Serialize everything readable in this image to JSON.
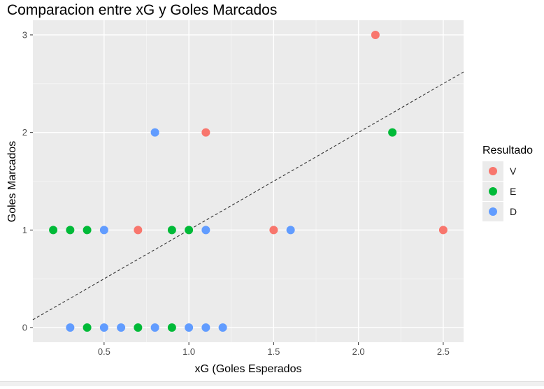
{
  "chart_data": {
    "type": "scatter",
    "title": "Comparacion entre xG y Goles Marcados",
    "xlabel": "xG (Goles Esperados",
    "ylabel": "Goles Marcados",
    "xlim": [
      0.08,
      2.62
    ],
    "ylim": [
      -0.15,
      3.15
    ],
    "x_ticks": [
      0.5,
      1.0,
      1.5,
      2.0,
      2.5
    ],
    "x_tick_labels": [
      "0.5",
      "1.0",
      "1.5",
      "2.0",
      "2.5"
    ],
    "y_ticks": [
      0,
      1,
      2,
      3
    ],
    "y_tick_labels": [
      "0",
      "1",
      "2",
      "3"
    ],
    "grid": true,
    "reference_line": {
      "style": "dashed",
      "color": "#333333",
      "slope": 1,
      "intercept": 0
    },
    "legend": {
      "title": "Resultado",
      "placement": "right",
      "entries": [
        {
          "label": "V",
          "color": "#F8766D"
        },
        {
          "label": "E",
          "color": "#00BA38"
        },
        {
          "label": "D",
          "color": "#619CFF"
        }
      ]
    },
    "series": [
      {
        "name": "V",
        "color": "#F8766D",
        "points": [
          {
            "x": 0.7,
            "y": 1
          },
          {
            "x": 1.1,
            "y": 2
          },
          {
            "x": 1.5,
            "y": 1
          },
          {
            "x": 2.1,
            "y": 3
          },
          {
            "x": 2.5,
            "y": 1
          }
        ]
      },
      {
        "name": "E",
        "color": "#00BA38",
        "points": [
          {
            "x": 0.2,
            "y": 1
          },
          {
            "x": 0.3,
            "y": 1
          },
          {
            "x": 0.4,
            "y": 1
          },
          {
            "x": 0.9,
            "y": 1
          },
          {
            "x": 1.0,
            "y": 1
          },
          {
            "x": 2.2,
            "y": 2
          },
          {
            "x": 0.4,
            "y": 0
          },
          {
            "x": 0.7,
            "y": 0
          },
          {
            "x": 0.9,
            "y": 0
          }
        ]
      },
      {
        "name": "D",
        "color": "#619CFF",
        "points": [
          {
            "x": 0.5,
            "y": 1
          },
          {
            "x": 0.8,
            "y": 2
          },
          {
            "x": 1.1,
            "y": 1
          },
          {
            "x": 1.6,
            "y": 1
          },
          {
            "x": 0.3,
            "y": 0
          },
          {
            "x": 0.5,
            "y": 0
          },
          {
            "x": 0.6,
            "y": 0
          },
          {
            "x": 0.8,
            "y": 0
          },
          {
            "x": 1.0,
            "y": 0
          },
          {
            "x": 1.1,
            "y": 0
          },
          {
            "x": 1.2,
            "y": 0
          }
        ]
      }
    ]
  }
}
